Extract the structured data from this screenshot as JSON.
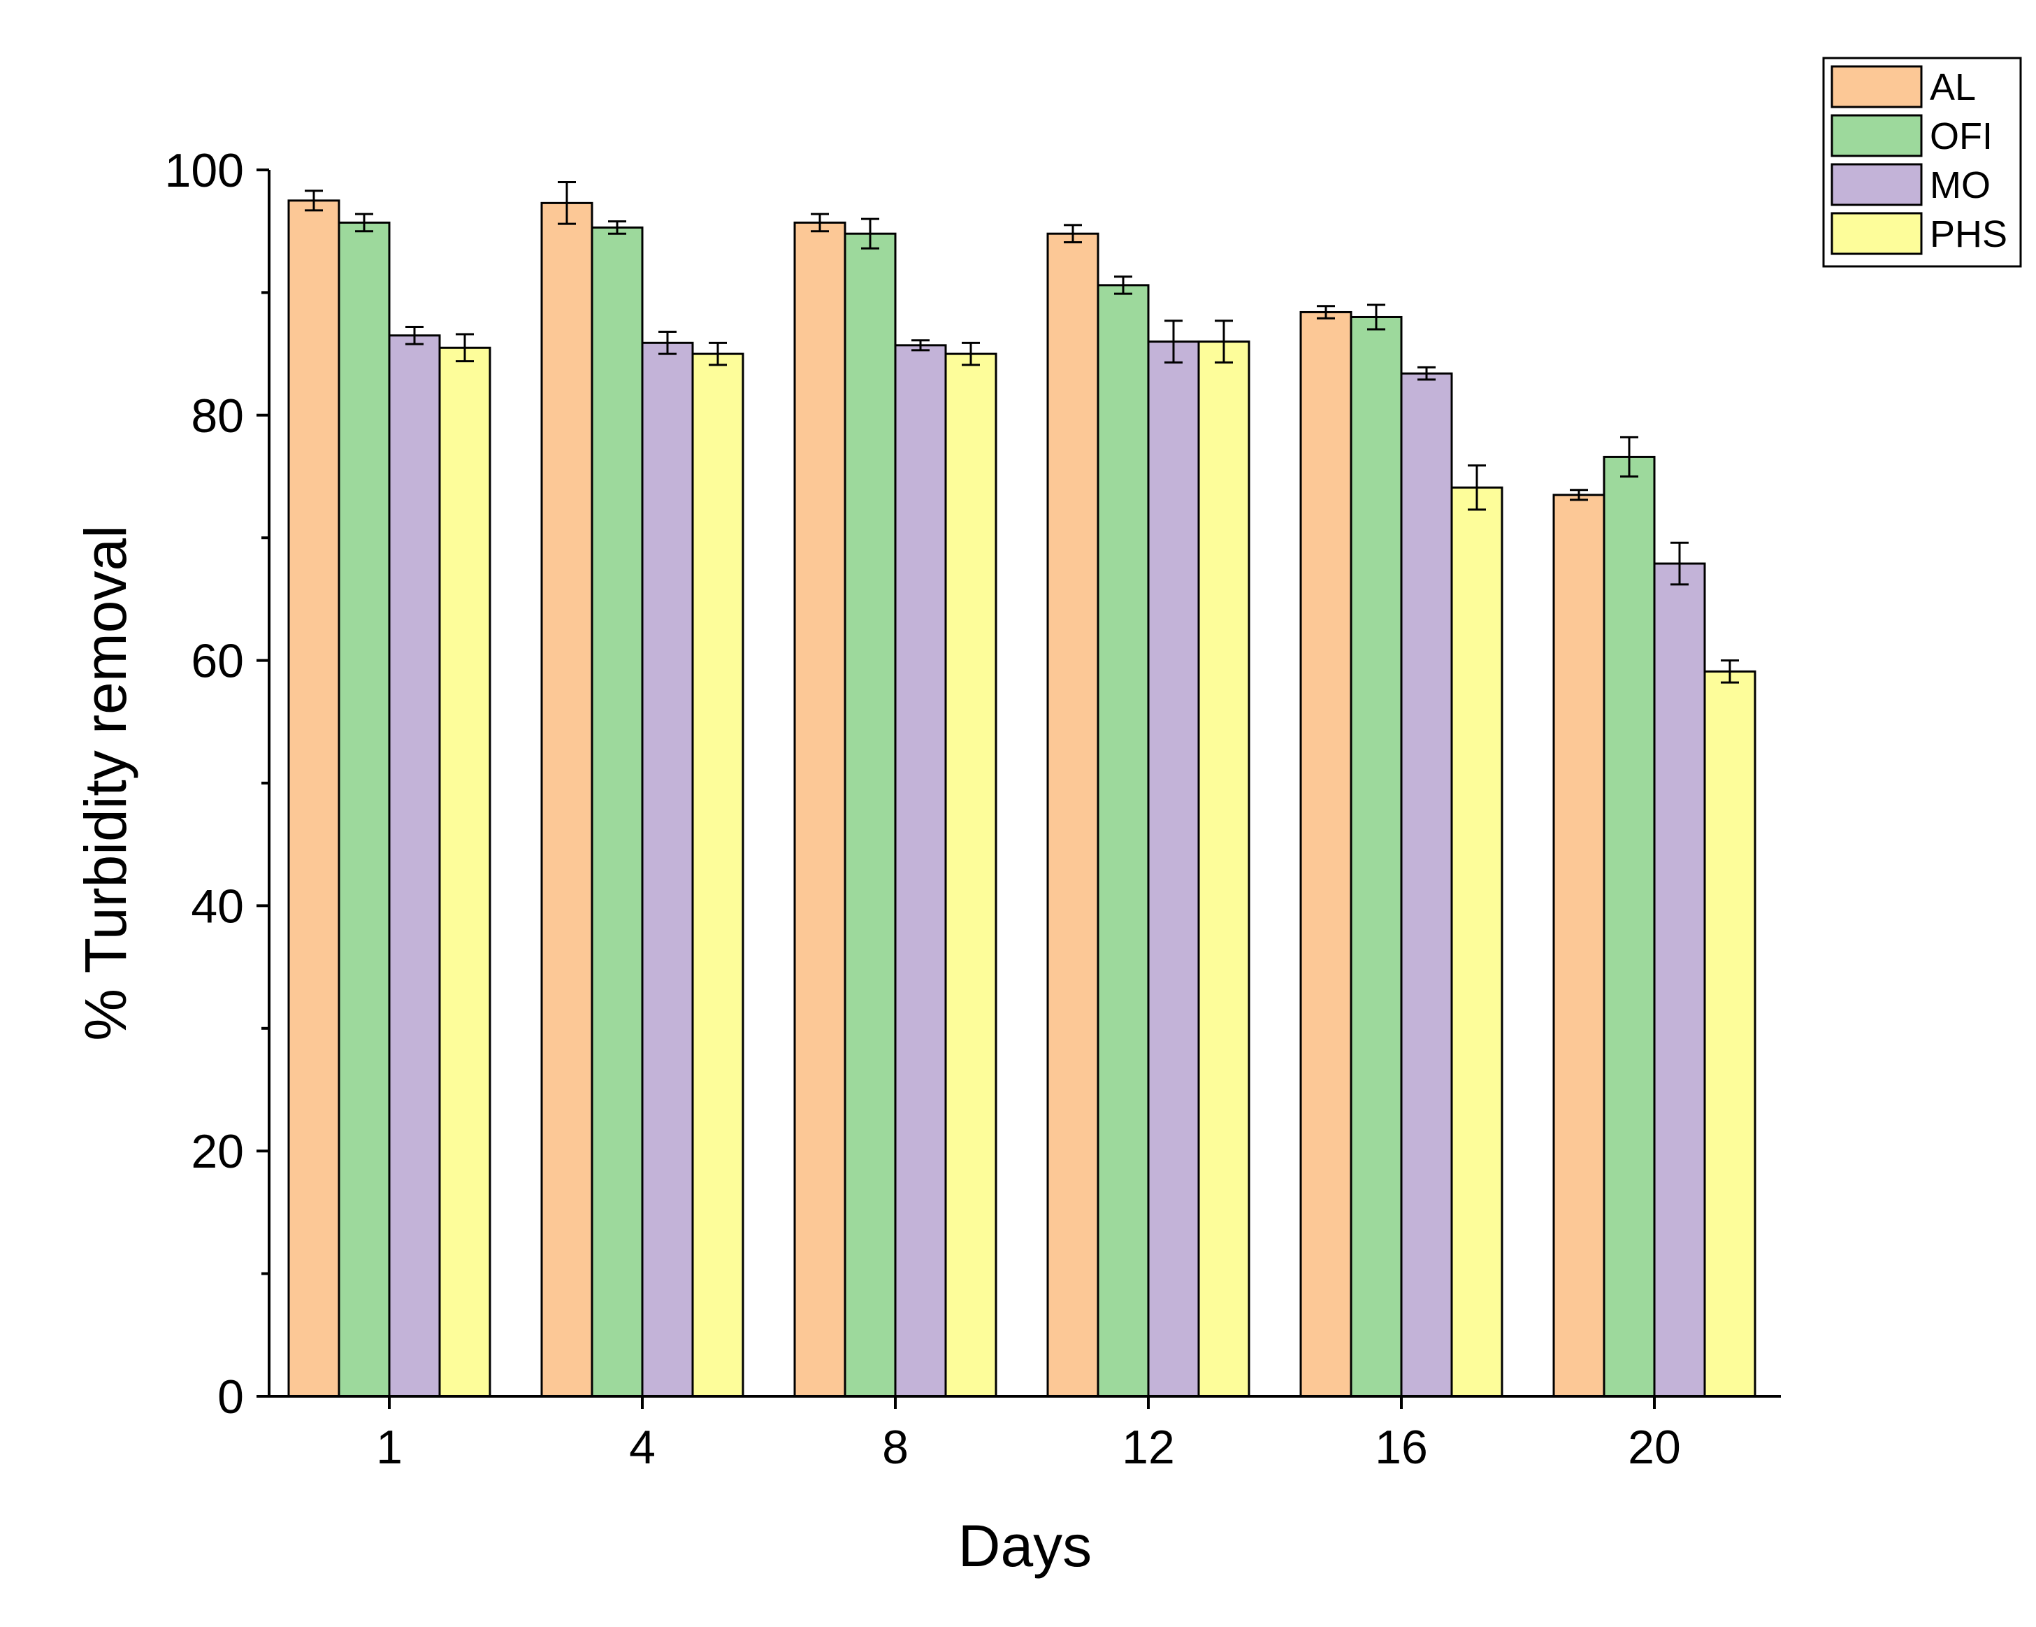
{
  "chart_data": {
    "type": "bar",
    "title": "",
    "xlabel": "Days",
    "ylabel": "% Turbidity removal",
    "categories": [
      "1",
      "4",
      "8",
      "12",
      "16",
      "20"
    ],
    "ylim": [
      0,
      100
    ],
    "yticks": [
      0,
      20,
      40,
      60,
      80,
      100
    ],
    "grid": false,
    "legend_position": "top-right",
    "error_bars": true,
    "series": [
      {
        "name": "AL",
        "color": "#fcc896",
        "values": [
          97.5,
          97.3,
          95.7,
          94.8,
          88.4,
          73.5
        ],
        "errors": [
          0.8,
          1.7,
          0.7,
          0.7,
          0.5,
          0.4
        ]
      },
      {
        "name": "OFI",
        "color": "#9dd99c",
        "values": [
          95.7,
          95.3,
          94.8,
          90.6,
          88.0,
          76.6
        ],
        "errors": [
          0.7,
          0.5,
          1.2,
          0.7,
          1.0,
          1.6
        ]
      },
      {
        "name": "MO",
        "color": "#c3b3d8",
        "values": [
          86.5,
          85.9,
          85.7,
          86.0,
          83.4,
          67.9
        ],
        "errors": [
          0.7,
          0.9,
          0.4,
          1.7,
          0.5,
          1.7
        ]
      },
      {
        "name": "PHS",
        "color": "#fdfd9a",
        "values": [
          85.5,
          85.0,
          85.0,
          86.0,
          74.1,
          59.1
        ],
        "errors": [
          1.1,
          0.9,
          0.9,
          1.7,
          1.8,
          0.9
        ]
      }
    ]
  }
}
